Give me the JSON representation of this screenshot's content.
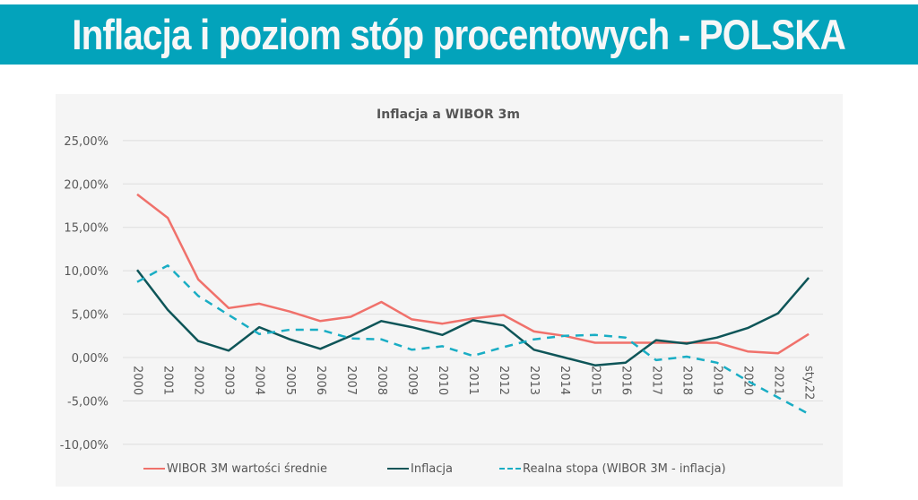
{
  "header": {
    "title": "Inflacja i poziom stóp procentowych - POLSKA"
  },
  "colors": {
    "banner": "#03a3bb",
    "wibor": "#f0716b",
    "inflacja": "#0e5558",
    "realna": "#19adc4"
  },
  "chart_data": {
    "type": "line",
    "title": "Inflacja a WIBOR 3m",
    "categories": [
      "2000",
      "2001",
      "2002",
      "2003",
      "2004",
      "2005",
      "2006",
      "2007",
      "2008",
      "2009",
      "2010",
      "2011",
      "2012",
      "2013",
      "2014",
      "2015",
      "2016",
      "2017",
      "2018",
      "2019",
      "2020",
      "2021",
      "sty.22"
    ],
    "ylim": [
      -10,
      25
    ],
    "yticks": [
      "-10,00%",
      "-5,00%",
      "0,00%",
      "5,00%",
      "10,00%",
      "15,00%",
      "20,00%",
      "25,00%"
    ],
    "grid": true,
    "legend": "bottom",
    "series": [
      {
        "name": "WIBOR 3M wartości średnie",
        "style": "solid",
        "values": [
          18.8,
          16.1,
          9.0,
          5.7,
          6.2,
          5.3,
          4.2,
          4.7,
          6.4,
          4.4,
          3.9,
          4.5,
          4.9,
          3.0,
          2.5,
          1.7,
          1.7,
          1.7,
          1.7,
          1.7,
          0.7,
          0.5,
          2.7
        ]
      },
      {
        "name": "Inflacja",
        "style": "solid",
        "values": [
          10.1,
          5.5,
          1.9,
          0.8,
          3.5,
          2.1,
          1.0,
          2.5,
          4.2,
          3.5,
          2.6,
          4.3,
          3.7,
          0.9,
          0.0,
          -0.9,
          -0.6,
          2.0,
          1.6,
          2.3,
          3.4,
          5.1,
          9.2
        ]
      },
      {
        "name": "Realna stopa (WIBOR 3M - inflacja)",
        "style": "dashed",
        "values": [
          8.7,
          10.6,
          7.1,
          4.9,
          2.7,
          3.2,
          3.2,
          2.2,
          2.1,
          0.9,
          1.3,
          0.2,
          1.2,
          2.1,
          2.5,
          2.6,
          2.3,
          -0.3,
          0.1,
          -0.6,
          -2.7,
          -4.6,
          -6.5
        ]
      }
    ]
  }
}
